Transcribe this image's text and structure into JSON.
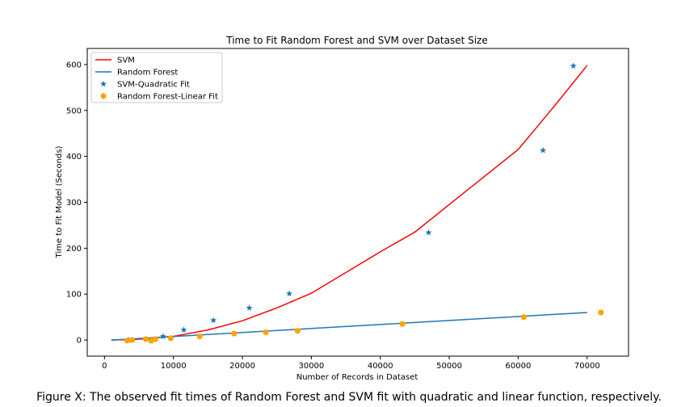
{
  "chart_data": {
    "type": "scatter",
    "title": "Time to Fit Random Forest and SVM over Dataset Size",
    "xlabel": "Number of Records in Dataset",
    "ylabel": "Time to Fit Model (Seconds)",
    "xlim": [
      -2500,
      76000
    ],
    "ylim": [
      -35,
      635
    ],
    "xticks": [
      0,
      10000,
      20000,
      30000,
      40000,
      50000,
      60000,
      70000
    ],
    "yticks": [
      0,
      100,
      200,
      300,
      400,
      500,
      600
    ],
    "grid": false,
    "legend_position": "top-left",
    "series": [
      {
        "name": "SVM",
        "kind": "line",
        "color": "#ff0000",
        "x": [
          1000,
          5000,
          10000,
          15000,
          20000,
          25000,
          30000,
          35000,
          40000,
          45000,
          50000,
          55000,
          60000,
          65000,
          70000
        ],
        "y": [
          0,
          2,
          8,
          22,
          42,
          70,
          102,
          147,
          192,
          235,
          295,
          355,
          415,
          505,
          598
        ]
      },
      {
        "name": "Random Forest",
        "kind": "line",
        "color": "#1f77b4",
        "x": [
          1000,
          70000
        ],
        "y": [
          0,
          60
        ]
      },
      {
        "name": "SVM-Quadratic Fit",
        "kind": "scatter",
        "marker": "star",
        "color": "#1f77b4",
        "x": [
          3500,
          6700,
          8500,
          11500,
          15800,
          21000,
          26800,
          47000,
          63600,
          68000
        ],
        "y": [
          0,
          -2,
          8,
          22,
          43,
          70,
          101,
          234,
          413,
          597
        ]
      },
      {
        "name": "Random Forest-Linear Fit",
        "kind": "scatter",
        "marker": "circle",
        "color": "#ffa500",
        "x": [
          3300,
          4000,
          6000,
          6800,
          7400,
          9600,
          13800,
          18800,
          23400,
          28000,
          43200,
          60800,
          72000
        ],
        "y": [
          -1,
          0,
          2,
          -1,
          2,
          4,
          8,
          14,
          17,
          20,
          35,
          50,
          60
        ]
      }
    ]
  },
  "caption": "Figure X: The observed fit times of Random Forest and SVM fit with quadratic and linear function, respectively."
}
